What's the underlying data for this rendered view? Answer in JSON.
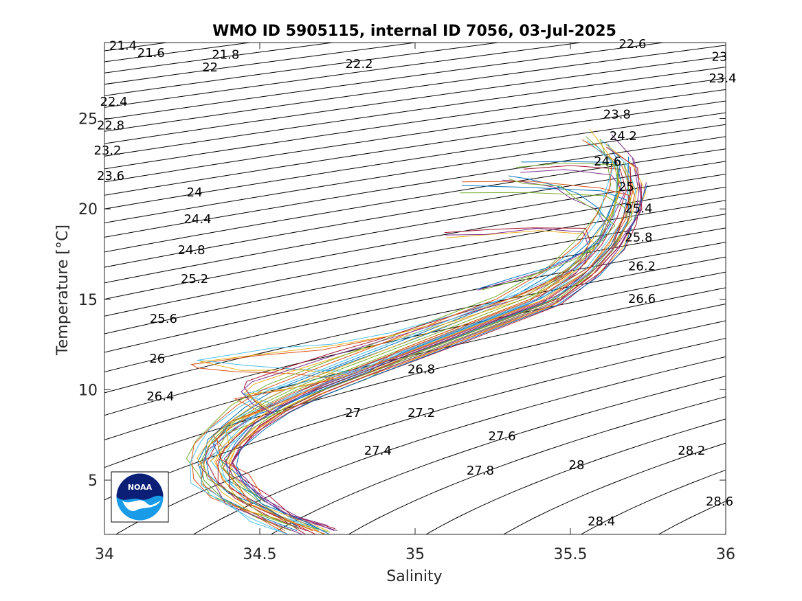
{
  "chart_data": {
    "type": "line",
    "title": "WMO ID 5905115, internal ID 7056, 03-Jul-2025",
    "xlabel": "Salinity",
    "ylabel": "Temperature [°C]",
    "xlim": [
      34,
      36
    ],
    "ylim": [
      2,
      29.2
    ],
    "xticks": [
      34,
      34.5,
      35,
      35.5,
      36
    ],
    "yticks": [
      5,
      10,
      15,
      20,
      25
    ],
    "xtick_labels": [
      "34",
      "34.5",
      "35",
      "35.5",
      "36"
    ],
    "ytick_labels": [
      "5",
      "10",
      "15",
      "20",
      "25"
    ],
    "grid": false,
    "logo": "NOAA",
    "density_contours": {
      "description_units": "sigma-theta",
      "levels": [
        21.4,
        21.6,
        21.8,
        22,
        22.2,
        22.4,
        22.6,
        22.8,
        23,
        23.2,
        23.4,
        23.6,
        23.8,
        24,
        24.2,
        24.4,
        24.6,
        24.8,
        25,
        25.2,
        25.4,
        25.6,
        25.8,
        26,
        26.2,
        26.4,
        26.6,
        26.8,
        27,
        27.2,
        27.4,
        27.6,
        27.8,
        28,
        28.2,
        28.4,
        28.6
      ],
      "labels": [
        {
          "text": "21.4",
          "s": 34.06,
          "t": 28.8
        },
        {
          "text": "21.6",
          "s": 34.15,
          "t": 28.4
        },
        {
          "text": "21.8",
          "s": 34.39,
          "t": 28.3
        },
        {
          "text": "22",
          "s": 34.34,
          "t": 27.6
        },
        {
          "text": "22.2",
          "s": 34.82,
          "t": 27.8
        },
        {
          "text": "22.4",
          "s": 34.03,
          "t": 25.7
        },
        {
          "text": "22.6",
          "s": 35.7,
          "t": 28.9
        },
        {
          "text": "22.8",
          "s": 34.02,
          "t": 24.4
        },
        {
          "text": "23",
          "s": 35.98,
          "t": 28.2
        },
        {
          "text": "23.2",
          "s": 34.01,
          "t": 23.0
        },
        {
          "text": "23.4",
          "s": 35.99,
          "t": 27.0
        },
        {
          "text": "23.6",
          "s": 34.02,
          "t": 21.6
        },
        {
          "text": "23.8",
          "s": 35.65,
          "t": 25.0
        },
        {
          "text": "24",
          "s": 34.29,
          "t": 20.7
        },
        {
          "text": "24.2",
          "s": 35.67,
          "t": 23.8
        },
        {
          "text": "24.4",
          "s": 34.3,
          "t": 19.2
        },
        {
          "text": "24.6",
          "s": 35.62,
          "t": 22.4
        },
        {
          "text": "24.8",
          "s": 34.28,
          "t": 17.5
        },
        {
          "text": "25",
          "s": 35.68,
          "t": 21.0
        },
        {
          "text": "25.2",
          "s": 34.29,
          "t": 15.9
        },
        {
          "text": "25.4",
          "s": 35.72,
          "t": 19.8
        },
        {
          "text": "25.6",
          "s": 34.19,
          "t": 13.7
        },
        {
          "text": "25.8",
          "s": 35.72,
          "t": 18.2
        },
        {
          "text": "26",
          "s": 34.17,
          "t": 11.5
        },
        {
          "text": "26.2",
          "s": 35.73,
          "t": 16.6
        },
        {
          "text": "26.4",
          "s": 34.18,
          "t": 9.4
        },
        {
          "text": "26.6",
          "s": 35.73,
          "t": 14.8
        },
        {
          "text": "26.8",
          "s": 35.02,
          "t": 10.9
        },
        {
          "text": "27",
          "s": 34.8,
          "t": 8.5
        },
        {
          "text": "27.2",
          "s": 35.02,
          "t": 8.5
        },
        {
          "text": "27.4",
          "s": 34.88,
          "t": 6.4
        },
        {
          "text": "27.6",
          "s": 35.28,
          "t": 7.2
        },
        {
          "text": "27.8",
          "s": 35.21,
          "t": 5.3
        },
        {
          "text": "28",
          "s": 35.52,
          "t": 5.6
        },
        {
          "text": "28.2",
          "s": 35.89,
          "t": 6.4
        },
        {
          "text": "28.4",
          "s": 35.6,
          "t": 2.5
        },
        {
          "text": "28.6",
          "s": 35.98,
          "t": 3.6
        }
      ]
    },
    "series_style": "multi-colored profile lines",
    "series_count": 40,
    "colors": [
      "#0072bd",
      "#d95319",
      "#edb120",
      "#7e2f8e",
      "#77ac30",
      "#4dbeee",
      "#a2142f"
    ],
    "series": [
      {
        "x": [
          34.62,
          34.5,
          34.38,
          34.32,
          34.3,
          34.33,
          34.38,
          34.45,
          34.55,
          34.7,
          34.85,
          35.0,
          35.15,
          35.3,
          35.45,
          35.55,
          35.62,
          35.65,
          35.66,
          35.62
        ],
        "y": [
          2.2,
          3.0,
          4.0,
          5.0,
          6.0,
          7.0,
          8.0,
          9.0,
          10.0,
          11.0,
          12.0,
          13.0,
          14.0,
          15.0,
          16.5,
          18.0,
          19.5,
          21.0,
          22.5,
          23.6
        ]
      },
      {
        "x": [
          34.67,
          34.56,
          34.45,
          34.38,
          34.36,
          34.4,
          34.46,
          34.55,
          34.66,
          34.82,
          34.97,
          35.12,
          35.27,
          35.42,
          35.55,
          35.63,
          35.68,
          35.7,
          35.69
        ],
        "y": [
          2.2,
          3.0,
          4.0,
          5.0,
          6.0,
          7.0,
          8.0,
          9.0,
          10.0,
          11.0,
          12.0,
          13.0,
          14.0,
          15.0,
          16.5,
          18.0,
          19.5,
          21.0,
          22.4
        ]
      },
      {
        "x": [
          34.72,
          34.6,
          34.5,
          34.43,
          34.4,
          34.43,
          34.49,
          34.58,
          34.7,
          34.85,
          35.0,
          35.15,
          35.3,
          35.45,
          35.57,
          35.65,
          35.7,
          35.72
        ],
        "y": [
          2.2,
          3.0,
          4.0,
          5.0,
          6.0,
          7.0,
          8.0,
          9.0,
          10.0,
          11.0,
          12.0,
          13.0,
          14.0,
          15.0,
          16.5,
          18.0,
          19.8,
          21.5
        ]
      },
      {
        "x": [
          34.74,
          34.62,
          34.51,
          34.44,
          34.41,
          34.44,
          34.5,
          34.59,
          34.71,
          34.86,
          35.02,
          35.17,
          35.32,
          35.47,
          35.58,
          35.66,
          35.71,
          35.72,
          35.7
        ],
        "y": [
          2.2,
          3.0,
          4.0,
          5.0,
          6.0,
          7.0,
          8.0,
          9.0,
          10.0,
          11.0,
          12.0,
          13.0,
          14.0,
          15.0,
          16.5,
          18.0,
          19.5,
          21.0,
          22.8
        ]
      },
      {
        "x": [
          34.6,
          34.48,
          34.38,
          34.32,
          34.31,
          34.34,
          34.41,
          34.5,
          34.62,
          34.77,
          34.92,
          35.07,
          35.22,
          35.37,
          35.5,
          35.58,
          35.63,
          35.66,
          35.64,
          35.55
        ],
        "y": [
          2.2,
          3.0,
          4.0,
          5.0,
          6.0,
          7.0,
          8.0,
          9.0,
          10.0,
          11.0,
          12.0,
          13.0,
          14.0,
          15.0,
          16.5,
          18.0,
          19.5,
          21.0,
          22.6,
          24.0
        ]
      },
      {
        "x": [
          34.69,
          34.57,
          34.46,
          34.39,
          34.37,
          34.41,
          34.47,
          34.56,
          34.68,
          34.83,
          34.99,
          35.14,
          35.29,
          35.44,
          35.56,
          35.64,
          35.69,
          35.71,
          35.68,
          35.6
        ],
        "y": [
          2.2,
          3.0,
          4.0,
          5.0,
          6.0,
          7.0,
          8.0,
          9.0,
          10.0,
          11.0,
          12.0,
          13.0,
          14.0,
          15.0,
          16.5,
          18.0,
          19.5,
          21.0,
          22.5,
          23.8
        ]
      },
      {
        "x": [
          34.65,
          34.53,
          34.42,
          34.36,
          34.33,
          34.36,
          34.43,
          34.52,
          34.64,
          34.78,
          34.94,
          35.09,
          35.24,
          35.39,
          35.52,
          35.6,
          35.65,
          35.68,
          35.66,
          35.5,
          35.35
        ],
        "y": [
          2.2,
          3.0,
          4.0,
          5.0,
          6.0,
          7.0,
          8.0,
          9.0,
          10.0,
          11.0,
          12.0,
          13.0,
          14.0,
          15.0,
          16.5,
          18.0,
          19.5,
          21.0,
          22.2,
          22.4,
          22.2
        ]
      },
      {
        "x": [
          34.5,
          34.45,
          34.38,
          34.35,
          34.4,
          34.55,
          34.7,
          34.85,
          34.95,
          35.1,
          35.25,
          35.4,
          35.55,
          35.63,
          35.67,
          35.68,
          35.6,
          35.35,
          35.15
        ],
        "y": [
          4.0,
          5.0,
          6.0,
          7.0,
          8.0,
          9.0,
          10.0,
          11.0,
          12.0,
          13.0,
          14.0,
          15.0,
          16.5,
          18.0,
          19.5,
          20.5,
          21.0,
          21.2,
          21.3
        ]
      },
      {
        "x": [
          34.3,
          34.34,
          34.38,
          34.35,
          34.4,
          34.5,
          34.42,
          34.58,
          34.75,
          34.6,
          34.42,
          34.3,
          34.28,
          34.5,
          34.7,
          34.9,
          35.1,
          35.3,
          35.5
        ],
        "y": [
          5.8,
          6.3,
          6.8,
          7.5,
          8.2,
          8.8,
          9.5,
          10.0,
          10.6,
          10.9,
          11.0,
          11.2,
          11.4,
          11.9,
          12.2,
          12.9,
          13.8,
          15.0,
          16.5
        ]
      },
      {
        "x": [
          34.55,
          34.5,
          34.45,
          34.48,
          34.6,
          34.75,
          34.9,
          35.05,
          35.2,
          35.35,
          35.47,
          35.55,
          35.58,
          35.55,
          35.4,
          35.25,
          35.1
        ],
        "y": [
          8.5,
          9.2,
          9.8,
          10.3,
          11.0,
          11.8,
          12.6,
          13.4,
          14.2,
          15.0,
          16.0,
          17.0,
          18.0,
          18.6,
          18.8,
          18.6,
          18.4
        ]
      },
      {
        "x": [
          35.2,
          35.3,
          35.4,
          35.5,
          35.58,
          35.62,
          35.58,
          35.5,
          35.45,
          35.35,
          35.28
        ],
        "y": [
          15.5,
          16.0,
          16.5,
          17.2,
          18.0,
          19.0,
          20.0,
          20.6,
          21.2,
          21.5,
          21.6
        ]
      }
    ]
  }
}
